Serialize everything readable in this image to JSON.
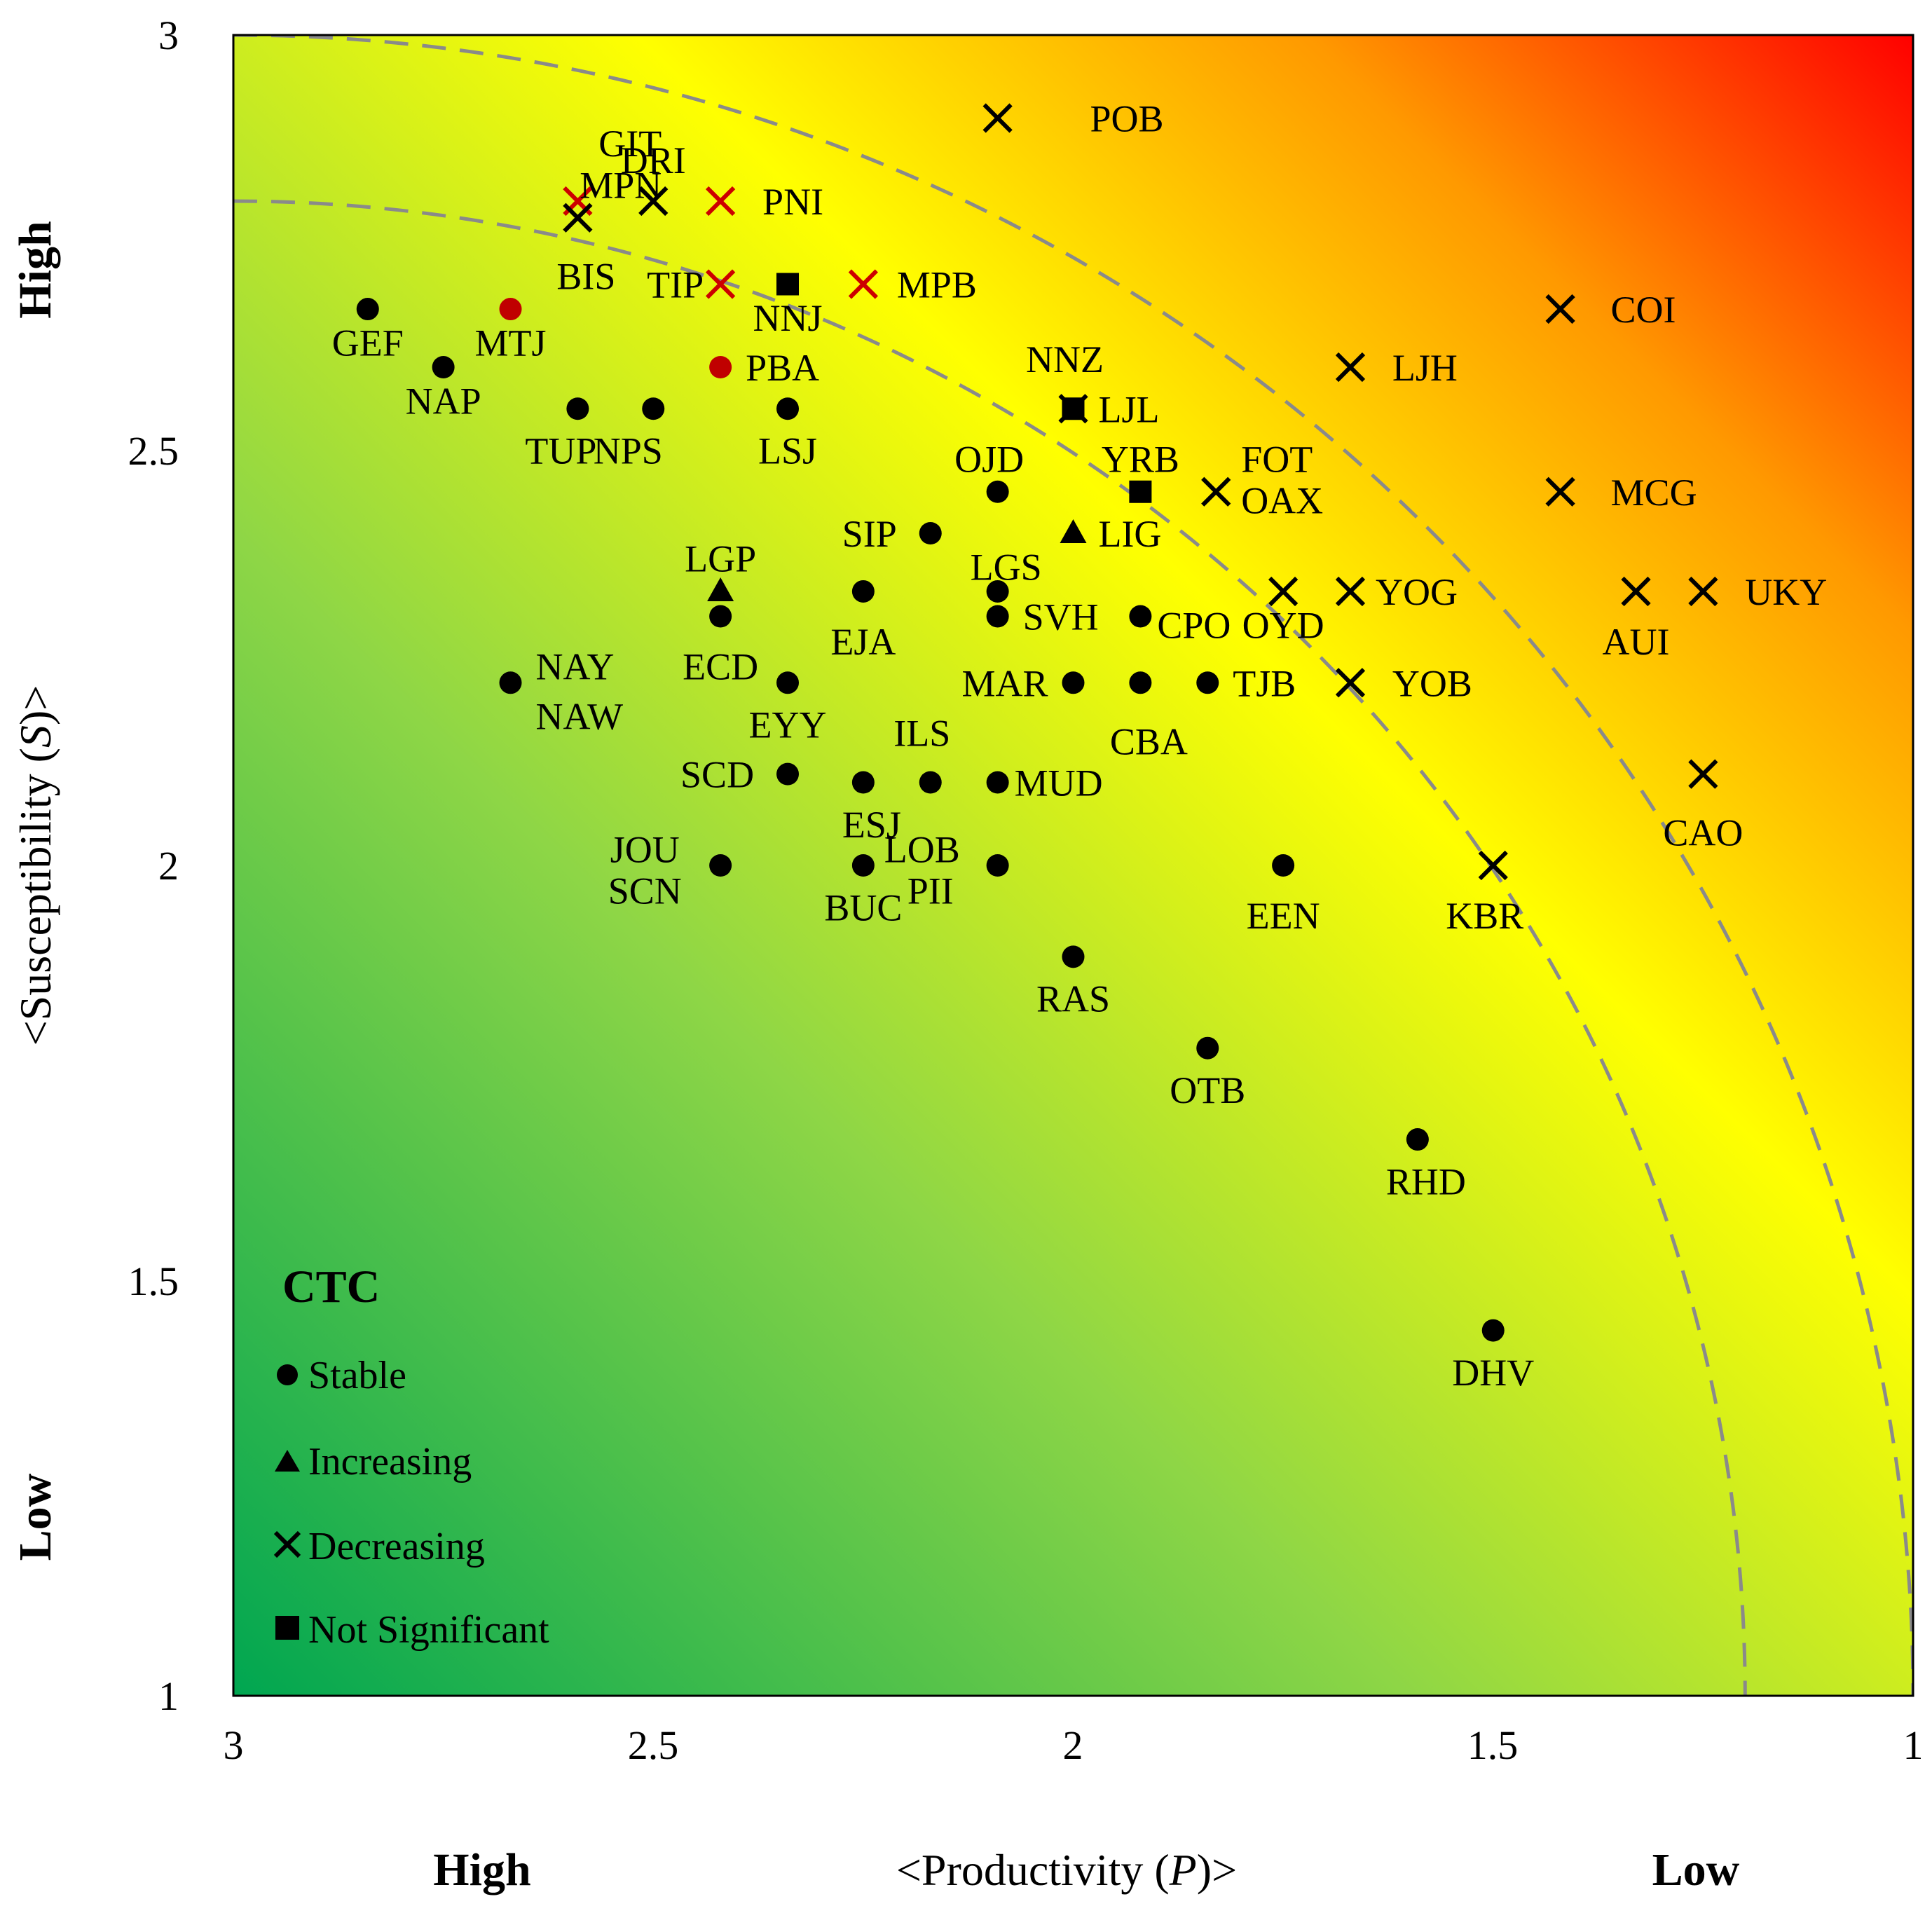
{
  "chart_data": {
    "type": "scatter",
    "xlabel_prefix": "<Productivity (",
    "xlabel_var": "P",
    "xlabel_suffix": ")>",
    "ylabel_prefix": "<Susceptibility (",
    "ylabel_var": "S",
    "ylabel_suffix": ")>",
    "xlim": [
      3,
      1
    ],
    "ylim": [
      1,
      3
    ],
    "x_ticks": [
      "3",
      "2.5",
      "2",
      "1.5",
      "1"
    ],
    "y_ticks": [
      "1",
      "1.5",
      "2",
      "2.5",
      "3"
    ],
    "x_high_label": "High",
    "x_low_label": "Low",
    "y_high_label": "High",
    "y_low_label": "Low",
    "gradient_colors": [
      "#00a651",
      "#8ed646",
      "#ffff00",
      "#ff9900",
      "#ff0000"
    ],
    "risk_arcs": [
      {
        "radius": 1.8
      },
      {
        "radius": 2.0
      }
    ],
    "legend": {
      "title": "CTC",
      "items": [
        {
          "marker": "circle",
          "label": "Stable"
        },
        {
          "marker": "triangle",
          "label": "Increasing"
        },
        {
          "marker": "cross",
          "label": "Decreasing"
        },
        {
          "marker": "square",
          "label": "Not Significant"
        }
      ]
    },
    "points": [
      {
        "label": "POB",
        "x": 2.09,
        "y": 2.9,
        "marker": "cross",
        "color": "#000000",
        "lx": 0.11,
        "ly": 0.0,
        "anchor": "start"
      },
      {
        "label": "GIT",
        "x": 2.59,
        "y": 2.8,
        "marker": "cross",
        "color": "#cc0000",
        "lx": 0.1,
        "ly": 0.07,
        "anchor": "end"
      },
      {
        "label": "MPN",
        "x": 2.59,
        "y": 2.8,
        "marker": "none",
        "color": "#000000",
        "lx": 0.1,
        "ly": 0.02,
        "anchor": "end"
      },
      {
        "label": "DRI",
        "x": 2.5,
        "y": 2.8,
        "marker": "cross",
        "color": "#000000",
        "lx": 0.0,
        "ly": 0.05,
        "anchor": "middle"
      },
      {
        "label": "PNI",
        "x": 2.42,
        "y": 2.8,
        "marker": "cross",
        "color": "#cc0000",
        "lx": 0.05,
        "ly": 0.0,
        "anchor": "start"
      },
      {
        "label": "BIS",
        "x": 2.59,
        "y": 2.78,
        "marker": "cross",
        "color": "#000000",
        "lx": 0.01,
        "ly": -0.07,
        "anchor": "middle"
      },
      {
        "label": "TIP",
        "x": 2.42,
        "y": 2.7,
        "marker": "cross",
        "color": "#cc0000",
        "lx": -0.02,
        "ly": 0.0,
        "anchor": "end"
      },
      {
        "label": "NNJ",
        "x": 2.34,
        "y": 2.7,
        "marker": "square",
        "color": "#000000",
        "lx": 0.0,
        "ly": -0.04,
        "anchor": "middle"
      },
      {
        "label": "MPB",
        "x": 2.25,
        "y": 2.7,
        "marker": "cross",
        "color": "#cc0000",
        "lx": 0.04,
        "ly": 0.0,
        "anchor": "start"
      },
      {
        "label": "GEF",
        "x": 2.84,
        "y": 2.67,
        "marker": "circle",
        "color": "#000000",
        "lx": 0.0,
        "ly": -0.04,
        "anchor": "middle"
      },
      {
        "label": "MTJ",
        "x": 2.67,
        "y": 2.67,
        "marker": "circle",
        "color": "#c00000",
        "lx": 0.0,
        "ly": -0.04,
        "anchor": "middle"
      },
      {
        "label": "NAP",
        "x": 2.75,
        "y": 2.6,
        "marker": "circle",
        "color": "#000000",
        "lx": 0.0,
        "ly": -0.04,
        "anchor": "middle"
      },
      {
        "label": "PBA",
        "x": 2.42,
        "y": 2.6,
        "marker": "circle",
        "color": "#c00000",
        "lx": 0.03,
        "ly": 0.0,
        "anchor": "start"
      },
      {
        "label": "TUP",
        "x": 2.59,
        "y": 2.55,
        "marker": "circle",
        "color": "#000000",
        "lx": -0.02,
        "ly": -0.05,
        "anchor": "middle"
      },
      {
        "label": "NPS",
        "x": 2.5,
        "y": 2.55,
        "marker": "circle",
        "color": "#000000",
        "lx": -0.03,
        "ly": -0.05,
        "anchor": "middle"
      },
      {
        "label": "LSJ",
        "x": 2.34,
        "y": 2.55,
        "marker": "circle",
        "color": "#000000",
        "lx": 0.0,
        "ly": -0.05,
        "anchor": "middle"
      },
      {
        "label": "NNZ",
        "x": 2.0,
        "y": 2.55,
        "marker": "square",
        "color": "#000000",
        "lx": -0.01,
        "ly": 0.06,
        "anchor": "middle"
      },
      {
        "label": "LJL",
        "x": 2.0,
        "y": 2.55,
        "marker": "cross",
        "color": "#000000",
        "lx": 0.03,
        "ly": 0.0,
        "anchor": "start"
      },
      {
        "label": "OJD",
        "x": 2.09,
        "y": 2.45,
        "marker": "circle",
        "color": "#000000",
        "lx": -0.01,
        "ly": 0.04,
        "anchor": "middle"
      },
      {
        "label": "YRB",
        "x": 1.92,
        "y": 2.45,
        "marker": "square",
        "color": "#000000",
        "lx": 0.0,
        "ly": 0.04,
        "anchor": "middle"
      },
      {
        "label": "FOT",
        "x": 1.83,
        "y": 2.45,
        "marker": "cross",
        "color": "#000000",
        "lx": 0.03,
        "ly": 0.04,
        "anchor": "start"
      },
      {
        "label": "OAX",
        "x": 1.83,
        "y": 2.45,
        "marker": "none",
        "color": "#000000",
        "lx": 0.03,
        "ly": -0.01,
        "anchor": "start"
      },
      {
        "label": "SIP",
        "x": 2.17,
        "y": 2.4,
        "marker": "circle",
        "color": "#000000",
        "lx": -0.04,
        "ly": 0.0,
        "anchor": "end"
      },
      {
        "label": "LIG",
        "x": 2.0,
        "y": 2.4,
        "marker": "triangle",
        "color": "#000000",
        "lx": 0.03,
        "ly": 0.0,
        "anchor": "start"
      },
      {
        "label": "LGP",
        "x": 2.42,
        "y": 2.33,
        "marker": "triangle",
        "color": "#000000",
        "lx": 0.0,
        "ly": 0.04,
        "anchor": "middle"
      },
      {
        "label": "EJA",
        "x": 2.25,
        "y": 2.33,
        "marker": "circle",
        "color": "#000000",
        "lx": 0.0,
        "ly": -0.06,
        "anchor": "middle"
      },
      {
        "label": "LGS",
        "x": 2.09,
        "y": 2.33,
        "marker": "circle",
        "color": "#000000",
        "lx": 0.01,
        "ly": 0.03,
        "anchor": "middle"
      },
      {
        "label": "OYD",
        "x": 1.75,
        "y": 2.33,
        "marker": "cross",
        "color": "#000000",
        "lx": 0.0,
        "ly": -0.04,
        "anchor": "middle"
      },
      {
        "label": "YOG",
        "x": 1.67,
        "y": 2.33,
        "marker": "cross",
        "color": "#000000",
        "lx": 0.03,
        "ly": 0.0,
        "anchor": "start"
      },
      {
        "label": "AUI",
        "x": 1.33,
        "y": 2.33,
        "marker": "cross",
        "color": "#000000",
        "lx": 0.0,
        "ly": -0.06,
        "anchor": "middle"
      },
      {
        "label": "UKY",
        "x": 1.25,
        "y": 2.33,
        "marker": "cross",
        "color": "#000000",
        "lx": 0.05,
        "ly": 0.0,
        "anchor": "start"
      },
      {
        "label": "ECD",
        "x": 2.42,
        "y": 2.3,
        "marker": "circle",
        "color": "#000000",
        "lx": 0.0,
        "ly": -0.06,
        "anchor": "middle"
      },
      {
        "label": "SVH",
        "x": 2.09,
        "y": 2.3,
        "marker": "circle",
        "color": "#000000",
        "lx": 0.03,
        "ly": 0.0,
        "anchor": "start"
      },
      {
        "label": "CPO",
        "x": 1.92,
        "y": 2.3,
        "marker": "circle",
        "color": "#000000",
        "lx": 0.02,
        "ly": -0.01,
        "anchor": "start"
      },
      {
        "label": "NAY",
        "x": 2.67,
        "y": 2.22,
        "marker": "circle",
        "color": "#000000",
        "lx": 0.03,
        "ly": 0.02,
        "anchor": "start"
      },
      {
        "label": "NAW",
        "x": 2.67,
        "y": 2.22,
        "marker": "none",
        "color": "#000000",
        "lx": 0.03,
        "ly": -0.04,
        "anchor": "start"
      },
      {
        "label": "EYY",
        "x": 2.34,
        "y": 2.22,
        "marker": "circle",
        "color": "#000000",
        "lx": 0.0,
        "ly": -0.05,
        "anchor": "middle"
      },
      {
        "label": "MAR",
        "x": 2.0,
        "y": 2.22,
        "marker": "circle",
        "color": "#000000",
        "lx": -0.03,
        "ly": 0.0,
        "anchor": "end"
      },
      {
        "label": "CBA",
        "x": 1.92,
        "y": 2.22,
        "marker": "circle",
        "color": "#000000",
        "lx": 0.01,
        "ly": -0.07,
        "anchor": "middle"
      },
      {
        "label": "TJB",
        "x": 1.84,
        "y": 2.22,
        "marker": "circle",
        "color": "#000000",
        "lx": 0.03,
        "ly": 0.0,
        "anchor": "start"
      },
      {
        "label": "YOB",
        "x": 1.67,
        "y": 2.22,
        "marker": "cross",
        "color": "#000000",
        "lx": 0.05,
        "ly": 0.0,
        "anchor": "start"
      },
      {
        "label": "ILS",
        "x": 2.17,
        "y": 2.1,
        "marker": "circle",
        "color": "#000000",
        "lx": -0.01,
        "ly": 0.06,
        "anchor": "middle"
      },
      {
        "label": "SCD",
        "x": 2.34,
        "y": 2.11,
        "marker": "circle",
        "color": "#000000",
        "lx": -0.04,
        "ly": 0.0,
        "anchor": "end"
      },
      {
        "label": "ESJ",
        "x": 2.25,
        "y": 2.1,
        "marker": "circle",
        "color": "#000000",
        "lx": 0.01,
        "ly": -0.05,
        "anchor": "middle"
      },
      {
        "label": "MUD",
        "x": 2.09,
        "y": 2.1,
        "marker": "circle",
        "color": "#000000",
        "lx": 0.02,
        "ly": 0.0,
        "anchor": "start"
      },
      {
        "label": "CAO",
        "x": 1.25,
        "y": 2.11,
        "marker": "cross",
        "color": "#000000",
        "lx": 0.0,
        "ly": -0.07,
        "anchor": "middle"
      },
      {
        "label": "JOU",
        "x": 2.42,
        "y": 2.0,
        "marker": "circle",
        "color": "#000000",
        "lx": -0.09,
        "ly": 0.02,
        "anchor": "middle"
      },
      {
        "label": "SCN",
        "x": 2.42,
        "y": 2.0,
        "marker": "none",
        "color": "#000000",
        "lx": -0.09,
        "ly": -0.03,
        "anchor": "middle"
      },
      {
        "label": "BUC",
        "x": 2.25,
        "y": 2.0,
        "marker": "circle",
        "color": "#000000",
        "lx": 0.0,
        "ly": -0.05,
        "anchor": "middle"
      },
      {
        "label": "LOB",
        "x": 2.09,
        "y": 2.0,
        "marker": "circle",
        "color": "#000000",
        "lx": -0.09,
        "ly": 0.02,
        "anchor": "middle"
      },
      {
        "label": "PII",
        "x": 2.09,
        "y": 2.0,
        "marker": "none",
        "color": "#000000",
        "lx": -0.08,
        "ly": -0.03,
        "anchor": "middle"
      },
      {
        "label": "EEN",
        "x": 1.75,
        "y": 2.0,
        "marker": "circle",
        "color": "#000000",
        "lx": 0.0,
        "ly": -0.06,
        "anchor": "middle"
      },
      {
        "label": "KBR",
        "x": 1.5,
        "y": 2.0,
        "marker": "cross",
        "color": "#000000",
        "lx": -0.01,
        "ly": -0.06,
        "anchor": "middle"
      },
      {
        "label": "RAS",
        "x": 2.0,
        "y": 1.89,
        "marker": "circle",
        "color": "#000000",
        "lx": 0.0,
        "ly": -0.05,
        "anchor": "middle"
      },
      {
        "label": "OTB",
        "x": 1.84,
        "y": 1.78,
        "marker": "circle",
        "color": "#000000",
        "lx": 0.0,
        "ly": -0.05,
        "anchor": "middle"
      },
      {
        "label": "RHD",
        "x": 1.59,
        "y": 1.67,
        "marker": "circle",
        "color": "#000000",
        "lx": 0.01,
        "ly": -0.05,
        "anchor": "middle"
      },
      {
        "label": "COI",
        "x": 1.42,
        "y": 2.67,
        "marker": "cross",
        "color": "#000000",
        "lx": 0.06,
        "ly": 0.0,
        "anchor": "start"
      },
      {
        "label": "LJH",
        "x": 1.67,
        "y": 2.6,
        "marker": "cross",
        "color": "#000000",
        "lx": 0.05,
        "ly": 0.0,
        "anchor": "start"
      },
      {
        "label": "MCG",
        "x": 1.42,
        "y": 2.45,
        "marker": "cross",
        "color": "#000000",
        "lx": 0.06,
        "ly": 0.0,
        "anchor": "start"
      },
      {
        "label": "DHV",
        "x": 1.5,
        "y": 1.44,
        "marker": "circle",
        "color": "#000000",
        "lx": 0.0,
        "ly": -0.05,
        "anchor": "middle"
      }
    ]
  }
}
